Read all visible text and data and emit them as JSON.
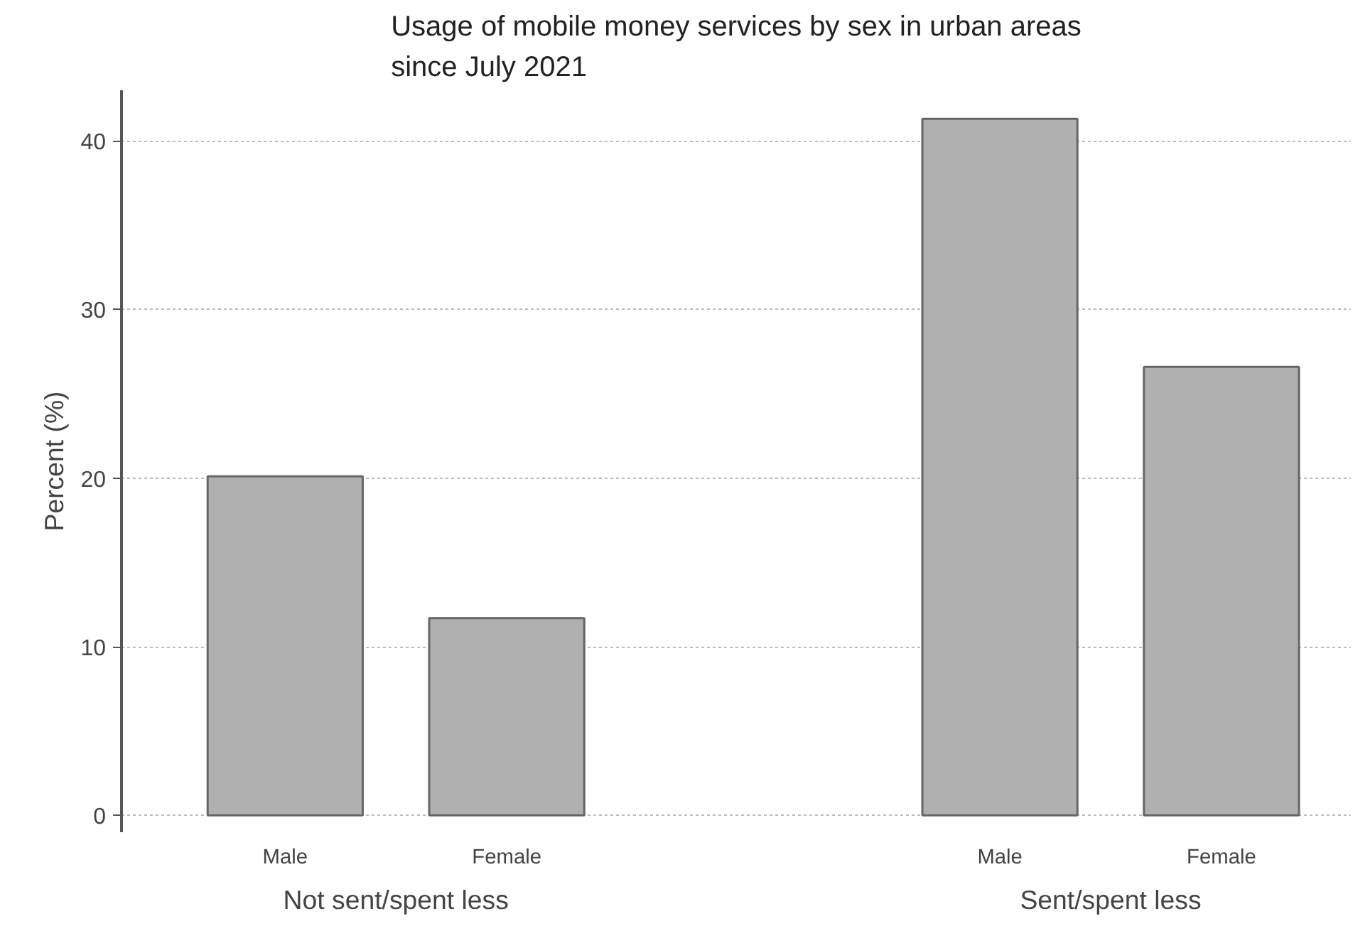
{
  "chart_data": {
    "type": "bar",
    "title": "Usage of mobile money services by sex in urban areas since July 2021",
    "ylabel": "Percent (%)",
    "categories": [
      "Not sent/spent less",
      "Sent/spent less"
    ],
    "series": [
      {
        "name": "Male",
        "color": "#b0b0b0",
        "values": [
          20.1,
          41.3
        ]
      },
      {
        "name": "Female",
        "color": "#b0b0b0",
        "values": [
          11.7,
          26.6
        ]
      }
    ],
    "ylim": [
      -1,
      43
    ],
    "yticks": [
      0,
      10,
      20,
      30,
      40
    ],
    "grid": "y",
    "legend": false
  }
}
